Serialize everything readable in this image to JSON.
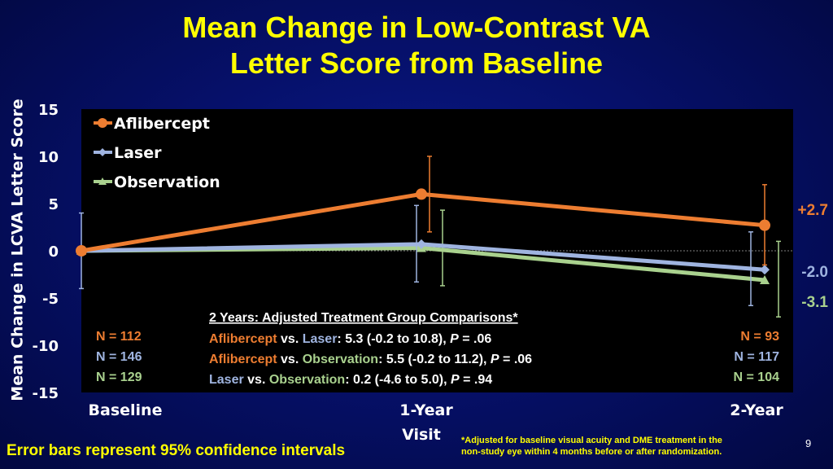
{
  "slide": {
    "title_line1": "Mean Change in Low-Contrast VA",
    "title_line2": "Letter Score from Baseline",
    "footer_left": "Error bars represent 95% confidence intervals",
    "footnote_line1": "*Adjusted for baseline visual acuity and DME treatment in the",
    "footnote_line2": "non-study eye within 4 months before or after randomization.",
    "page_number": "9"
  },
  "chart_data": {
    "type": "line",
    "title": "Mean Change in Low-Contrast VA Letter Score from Baseline",
    "ylabel": "Mean Change in LCVA Letter Score",
    "xlabel_categories": [
      "Baseline",
      "1-Year",
      "2-Year"
    ],
    "xlabel_extra": "Visit",
    "ylim": [
      -15,
      15
    ],
    "yticks": [
      15,
      10,
      5,
      0,
      -5,
      -10,
      -15
    ],
    "zero_line": "dotted",
    "legend_position": "top-left",
    "series": [
      {
        "name": "Aflibercept",
        "color": "#ed7d31",
        "marker": "circle",
        "values": [
          0,
          6.0,
          2.7
        ],
        "ci_low": [
          null,
          2.0,
          -1.5
        ],
        "ci_high": [
          null,
          10.0,
          7.0
        ]
      },
      {
        "name": "Laser",
        "color": "#9fb4e0",
        "marker": "diamond",
        "values": [
          0,
          0.7,
          -2.0
        ],
        "ci_low": [
          -4.0,
          -3.3,
          -5.8
        ],
        "ci_high": [
          4.0,
          4.8,
          2.0
        ]
      },
      {
        "name": "Observation",
        "color": "#a9d18e",
        "marker": "triangle",
        "values": [
          0,
          0.3,
          -3.1
        ],
        "ci_low": [
          null,
          -3.7,
          -7.0
        ],
        "ci_high": [
          null,
          4.3,
          1.0
        ]
      }
    ],
    "end_labels": [
      {
        "text": "+2.7",
        "color": "#ed7d31"
      },
      {
        "text": "-2.0",
        "color": "#9fb4e0"
      },
      {
        "text": "-3.1",
        "color": "#a9d18e"
      }
    ],
    "n_baseline": [
      {
        "text": "N = 112",
        "color": "#ed7d31"
      },
      {
        "text": "N = 146",
        "color": "#9fb4e0"
      },
      {
        "text": "N = 129",
        "color": "#a9d18e"
      }
    ],
    "n_year2": [
      {
        "text": "N = 93",
        "color": "#ed7d31"
      },
      {
        "text": "N = 117",
        "color": "#9fb4e0"
      },
      {
        "text": "N = 104",
        "color": "#a9d18e"
      }
    ],
    "comparisons": {
      "header": "2 Years: Adjusted Treatment Group Comparisons*",
      "lines": [
        {
          "a": "Aflibercept",
          "a_color": "#ed7d31",
          "vs": " vs. ",
          "b": "Laser",
          "b_color": "#9fb4e0",
          "rest": ": 5.3 (-0.2 to 10.8), ",
          "p": "P",
          "pval": " = .06"
        },
        {
          "a": "Aflibercept",
          "a_color": "#ed7d31",
          "vs": " vs. ",
          "b": "Observation",
          "b_color": "#a9d18e",
          "rest": ": 5.5 (-0.2 to 11.2), ",
          "p": "P",
          "pval": " = .06"
        },
        {
          "a": "Laser",
          "a_color": "#9fb4e0",
          "vs": " vs. ",
          "b": "Observation",
          "b_color": "#a9d18e",
          "rest": ": 0.2 (-4.6 to 5.0), ",
          "p": "P",
          "pval": " = .94"
        }
      ]
    }
  }
}
